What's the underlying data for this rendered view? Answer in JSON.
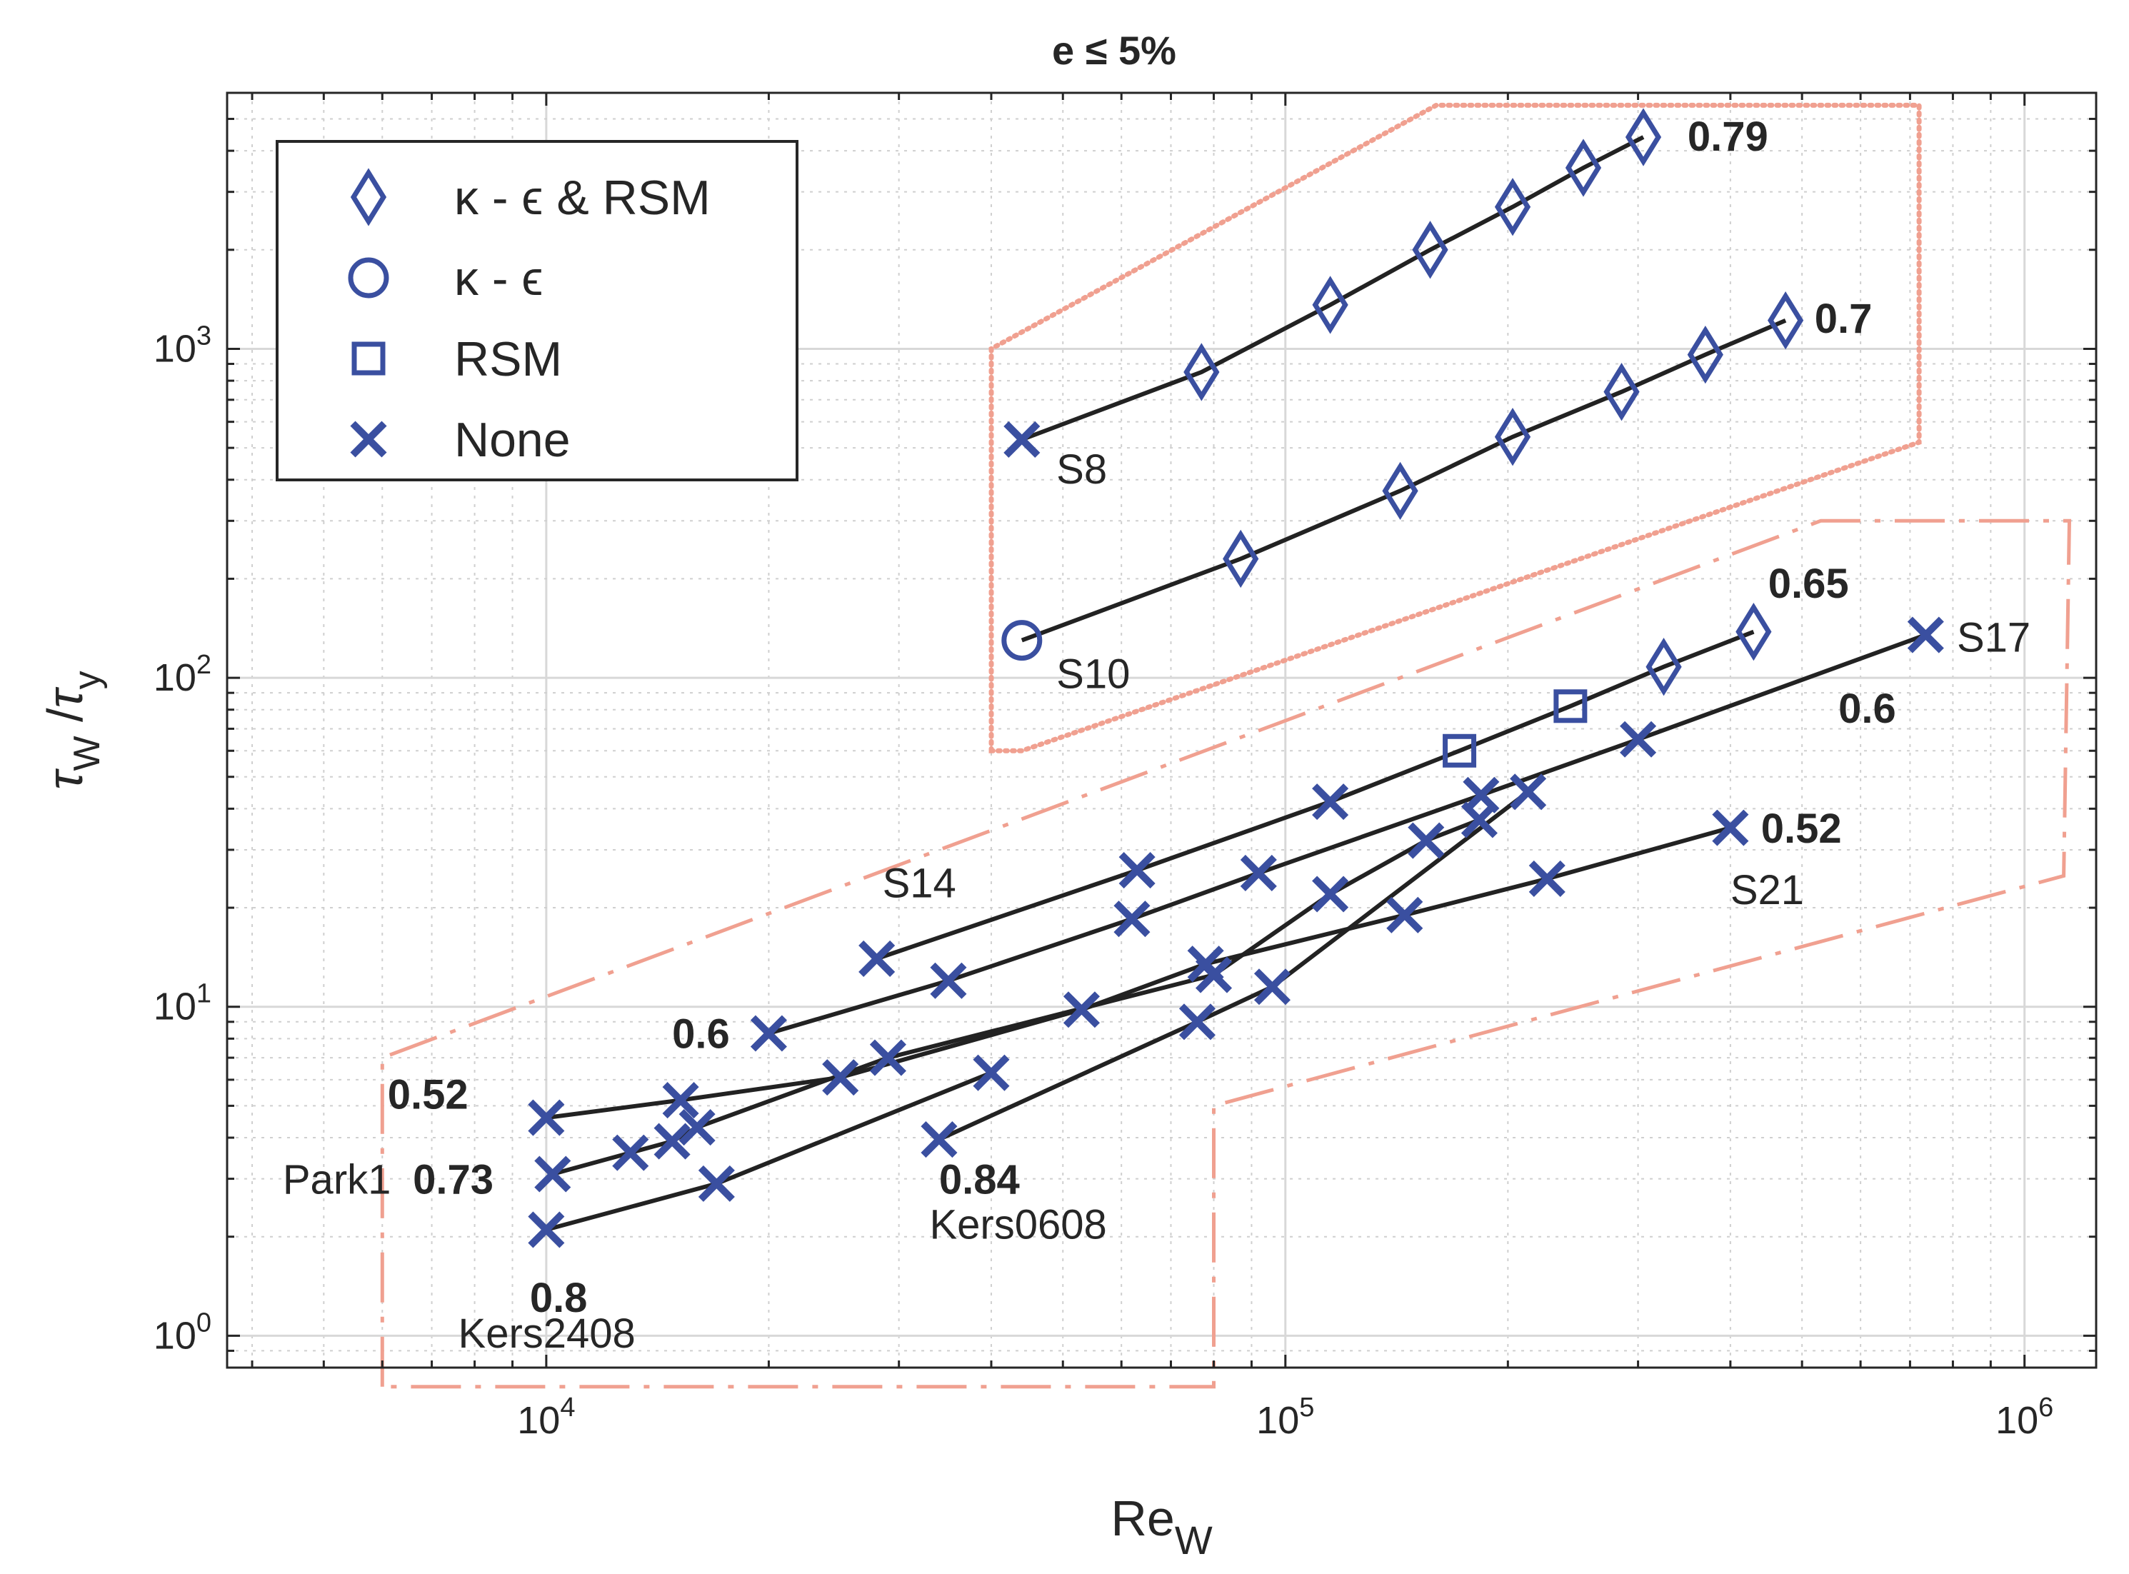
{
  "chart_data": {
    "type": "scatter",
    "title": "e ≤ 5%",
    "xlabel": {
      "main": "Re",
      "sub": "W"
    },
    "ylabel": {
      "num": "τ",
      "num_sub": "W",
      "den": "τ",
      "den_sub": "y"
    },
    "xscale": "log",
    "yscale": "log",
    "xlim": [
      3700,
      1250000
    ],
    "ylim": [
      0.8,
      6000
    ],
    "grid": true,
    "x_ticks": [
      {
        "value": 10000,
        "base": "10",
        "exp": "4"
      },
      {
        "value": 100000,
        "base": "10",
        "exp": "5"
      },
      {
        "value": 1000000,
        "base": "10",
        "exp": "6"
      }
    ],
    "y_ticks": [
      {
        "value": 1,
        "base": "10",
        "exp": "0"
      },
      {
        "value": 10,
        "base": "10",
        "exp": "1"
      },
      {
        "value": 100,
        "base": "10",
        "exp": "2"
      },
      {
        "value": 1000,
        "base": "10",
        "exp": "3"
      }
    ],
    "legend": {
      "position": "top-left",
      "entries": [
        {
          "marker": "diamond",
          "label": "κ - ϵ & RSM"
        },
        {
          "marker": "circle",
          "label": "κ - ϵ"
        },
        {
          "marker": "square",
          "label": "RSM"
        },
        {
          "marker": "x",
          "label": "None"
        }
      ]
    },
    "colors": {
      "marker": "#3a4fa0",
      "line": "#222222",
      "region": "#f0a090"
    },
    "series": [
      {
        "name": "S8",
        "exponent_label": "0.79",
        "points": [
          [
            44000,
            530,
            "x"
          ],
          [
            77000,
            850,
            "diamond"
          ],
          [
            115000,
            1360,
            "diamond"
          ],
          [
            157000,
            2000,
            "diamond"
          ],
          [
            203000,
            2700,
            "diamond"
          ],
          [
            253000,
            3550,
            "diamond"
          ],
          [
            305000,
            4400,
            "diamond"
          ]
        ]
      },
      {
        "name": "S10",
        "exponent_label": "0.7",
        "points": [
          [
            44000,
            130,
            "circle"
          ],
          [
            87000,
            230,
            "diamond"
          ],
          [
            143000,
            370,
            "diamond"
          ],
          [
            203000,
            540,
            "diamond"
          ],
          [
            285000,
            740,
            "diamond"
          ],
          [
            370000,
            960,
            "diamond"
          ],
          [
            475000,
            1220,
            "diamond"
          ]
        ]
      },
      {
        "name": "S14",
        "exponent_label": "0.65",
        "points": [
          [
            28000,
            14,
            "x"
          ],
          [
            63000,
            26,
            "x"
          ],
          [
            115000,
            42,
            "x"
          ],
          [
            172000,
            60,
            "square"
          ],
          [
            243000,
            82,
            "square"
          ],
          [
            325000,
            108,
            "diamond"
          ],
          [
            430000,
            138,
            "diamond"
          ]
        ]
      },
      {
        "name": "S17",
        "exponent_label": "0.6",
        "points": [
          [
            20000,
            8.3,
            "x"
          ],
          [
            35000,
            12,
            "x"
          ],
          [
            62000,
            18.5,
            "x"
          ],
          [
            92000,
            25.5,
            "x"
          ],
          [
            184000,
            44,
            "x"
          ],
          [
            300000,
            65,
            "x"
          ],
          [
            735000,
            135,
            "x"
          ]
        ]
      },
      {
        "name": "S21",
        "exponent_label": "0.52",
        "points": [
          [
            10000,
            4.6,
            "x"
          ],
          [
            15200,
            5.2,
            "x"
          ],
          [
            25000,
            6.1,
            "x"
          ],
          [
            53000,
            9.8,
            "x"
          ],
          [
            78000,
            13.5,
            "x"
          ],
          [
            145000,
            19,
            "x"
          ],
          [
            226000,
            24.5,
            "x"
          ],
          [
            400000,
            35,
            "x"
          ]
        ]
      },
      {
        "name": "Park1",
        "exponent_label": "0.73",
        "points": [
          [
            10200,
            3.1,
            "x"
          ],
          [
            13000,
            3.6,
            "x"
          ],
          [
            14800,
            3.9,
            "x"
          ],
          [
            16000,
            4.3,
            "x"
          ],
          [
            29000,
            7.0,
            "x"
          ],
          [
            80000,
            12.5,
            "x"
          ],
          [
            115000,
            22,
            "x"
          ],
          [
            155000,
            32,
            "x"
          ],
          [
            183000,
            37,
            "x"
          ]
        ]
      },
      {
        "name": "Kers0608",
        "exponent_label": "0.84",
        "points": [
          [
            34000,
            3.95,
            "x"
          ],
          [
            76000,
            9.0,
            "x"
          ],
          [
            96000,
            11.5,
            "x"
          ],
          [
            213000,
            45,
            "x"
          ]
        ]
      },
      {
        "name": "Kers2408",
        "exponent_label": "0.8",
        "points": [
          [
            10000,
            2.1,
            "x"
          ],
          [
            17000,
            2.9,
            "x"
          ],
          [
            40000,
            6.3,
            "x"
          ]
        ]
      }
    ],
    "annotations": [
      {
        "text": "S8",
        "x": 49000,
        "y": 390,
        "style": "normal"
      },
      {
        "text": "S10",
        "x": 49000,
        "y": 93,
        "style": "normal"
      },
      {
        "text": "S14",
        "x": 28500,
        "y": 21.5,
        "style": "normal"
      },
      {
        "text": "S17",
        "x": 810000,
        "y": 120,
        "style": "normal"
      },
      {
        "text": "S21",
        "x": 400000,
        "y": 20.5,
        "style": "normal"
      },
      {
        "text": "Park1",
        "x": 4400,
        "y": 2.7,
        "style": "normal"
      },
      {
        "text": "Kers0608",
        "x": 33000,
        "y": 1.97,
        "style": "normal"
      },
      {
        "text": "Kers2408",
        "x": 7600,
        "y": 0.92,
        "style": "normal"
      },
      {
        "text": "0.79",
        "x": 350000,
        "y": 4000,
        "style": "bold"
      },
      {
        "text": "0.7",
        "x": 520000,
        "y": 1120,
        "style": "bold"
      },
      {
        "text": "0.65",
        "x": 450000,
        "y": 175,
        "style": "bold"
      },
      {
        "text": "0.6",
        "x": 560000,
        "y": 73,
        "style": "bold"
      },
      {
        "text": "0.52",
        "x": 440000,
        "y": 31.5,
        "style": "bold"
      },
      {
        "text": "0.6",
        "x": 14800,
        "y": 7.5,
        "style": "bold"
      },
      {
        "text": "0.52",
        "x": 6100,
        "y": 4.9,
        "style": "bold"
      },
      {
        "text": "0.73",
        "x": 6600,
        "y": 2.7,
        "style": "bold"
      },
      {
        "text": "0.84",
        "x": 34000,
        "y": 2.7,
        "style": "bold"
      },
      {
        "text": "0.8",
        "x": 9500,
        "y": 1.18,
        "style": "bold"
      }
    ],
    "regions": [
      {
        "name": "dotted-region",
        "style": "dotted",
        "points": [
          [
            40000,
            60
          ],
          [
            40000,
            1000
          ],
          [
            160000,
            5500
          ],
          [
            720000,
            5500
          ],
          [
            720000,
            520
          ],
          [
            44000,
            60
          ]
        ]
      },
      {
        "name": "dashdot-region",
        "style": "dashdot",
        "points": [
          [
            6000,
            0.7
          ],
          [
            6000,
            7
          ],
          [
            530000,
            300
          ],
          [
            1150000,
            300
          ],
          [
            1130000,
            25
          ],
          [
            80000,
            5
          ],
          [
            80000,
            0.7
          ]
        ]
      }
    ]
  }
}
